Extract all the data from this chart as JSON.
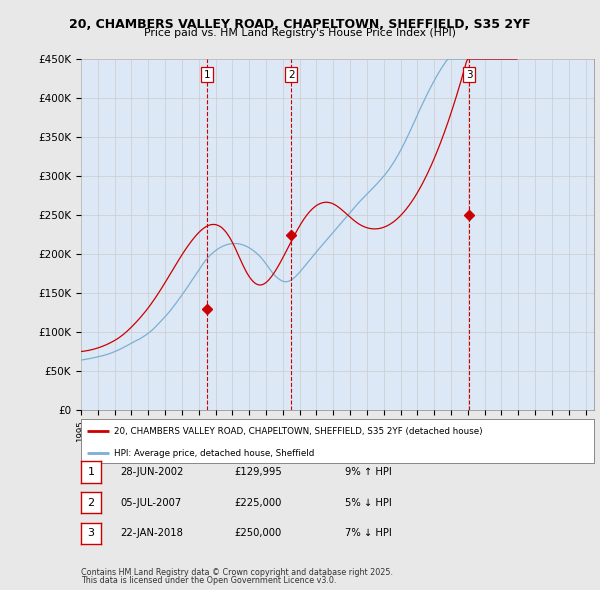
{
  "title": "20, CHAMBERS VALLEY ROAD, CHAPELTOWN, SHEFFIELD, S35 2YF",
  "subtitle": "Price paid vs. HM Land Registry's House Price Index (HPI)",
  "ylim": [
    0,
    450000
  ],
  "yticks": [
    0,
    50000,
    100000,
    150000,
    200000,
    250000,
    300000,
    350000,
    400000,
    450000
  ],
  "ytick_labels": [
    "£0",
    "£50K",
    "£100K",
    "£150K",
    "£200K",
    "£250K",
    "£300K",
    "£350K",
    "£400K",
    "£450K"
  ],
  "xlim_start": 1995.0,
  "xlim_end": 2025.5,
  "background_color": "#e8e8e8",
  "plot_bg_color": "#ffffff",
  "shade_color": "#dce8f5",
  "grid_color": "#cccccc",
  "red_line_color": "#cc0000",
  "blue_line_color": "#7ab0d4",
  "transaction_line_color": "#cc0000",
  "transactions": [
    {
      "year": 2002.49,
      "price": 129995,
      "label": "1",
      "date": "28-JUN-2002",
      "price_str": "£129,995",
      "hpi_str": "9% ↑ HPI"
    },
    {
      "year": 2007.51,
      "price": 225000,
      "label": "2",
      "date": "05-JUL-2007",
      "price_str": "£225,000",
      "hpi_str": "5% ↓ HPI"
    },
    {
      "year": 2018.07,
      "price": 250000,
      "label": "3",
      "date": "22-JAN-2018",
      "price_str": "£250,000",
      "hpi_str": "7% ↓ HPI"
    }
  ],
  "legend_entry1": "20, CHAMBERS VALLEY ROAD, CHAPELTOWN, SHEFFIELD, S35 2YF (detached house)",
  "legend_entry2": "HPI: Average price, detached house, Sheffield",
  "footer1": "Contains HM Land Registry data © Crown copyright and database right 2025.",
  "footer2": "This data is licensed under the Open Government Licence v3.0.",
  "hpi_values_monthly": [
    64000,
    64300,
    64600,
    64900,
    65200,
    65500,
    65800,
    66200,
    66600,
    67000,
    67400,
    67800,
    68200,
    68600,
    69000,
    69400,
    69900,
    70400,
    70900,
    71500,
    72100,
    72700,
    73400,
    74100,
    74800,
    75600,
    76400,
    77200,
    78100,
    79000,
    79900,
    80800,
    81800,
    82800,
    83800,
    84800,
    85800,
    86800,
    87700,
    88600,
    89500,
    90400,
    91300,
    92400,
    93500,
    94700,
    95900,
    97100,
    98400,
    99800,
    101300,
    102900,
    104600,
    106400,
    108200,
    110100,
    112000,
    113900,
    115800,
    117700,
    119600,
    121600,
    123700,
    125900,
    128100,
    130400,
    132700,
    135100,
    137500,
    139900,
    142400,
    144900,
    147400,
    149900,
    152500,
    155100,
    157800,
    160500,
    163200,
    165900,
    168600,
    171300,
    174000,
    176700,
    179400,
    182100,
    184800,
    187300,
    189800,
    192100,
    194300,
    196300,
    198200,
    199900,
    201500,
    203000,
    204400,
    205700,
    206900,
    208000,
    209000,
    209900,
    210700,
    211400,
    212000,
    212500,
    212900,
    213200,
    213400,
    213500,
    213500,
    213400,
    213200,
    212900,
    212500,
    212000,
    211400,
    210700,
    209900,
    209000,
    208000,
    206900,
    205700,
    204400,
    203000,
    201500,
    199900,
    198200,
    196300,
    194300,
    192100,
    189800,
    187300,
    184700,
    182100,
    179600,
    177200,
    175000,
    173000,
    171200,
    169600,
    168200,
    167000,
    166000,
    165200,
    164700,
    164500,
    164600,
    165000,
    165700,
    166700,
    167900,
    169400,
    171000,
    172800,
    174700,
    176700,
    178800,
    181000,
    183200,
    185400,
    187600,
    189800,
    192000,
    194200,
    196400,
    198600,
    200800,
    202900,
    205000,
    207100,
    209200,
    211300,
    213400,
    215500,
    217600,
    219700,
    221800,
    223900,
    226000,
    228100,
    230200,
    232300,
    234400,
    236500,
    238600,
    240700,
    242800,
    244900,
    247000,
    249100,
    251200,
    253300,
    255400,
    257500,
    259600,
    261700,
    263700,
    265700,
    267600,
    269500,
    271400,
    273200,
    275000,
    276800,
    278600,
    280400,
    282200,
    284000,
    285900,
    287800,
    289700,
    291700,
    293700,
    295700,
    297700,
    299800,
    302000,
    304300,
    306700,
    309200,
    311800,
    314500,
    317300,
    320200,
    323200,
    326300,
    329500,
    332800,
    336200,
    339700,
    343300,
    347000,
    350700,
    354500,
    358400,
    362400,
    366400,
    370400,
    374400,
    378400,
    382300,
    386200,
    390000,
    393800,
    397600,
    401300,
    405000,
    408600,
    412100,
    415600,
    419000,
    422300,
    425500,
    428700,
    431800,
    434800,
    437700,
    440500,
    443200,
    445800,
    448400,
    450900,
    453400,
    455800,
    458100,
    460400,
    462600,
    464700,
    466800,
    468800,
    470700,
    472600,
    474400,
    476100,
    477800,
    479400,
    480900,
    482300,
    483700,
    485000,
    486200,
    487300,
    488400,
    489300,
    490200,
    491000,
    491700,
    492300,
    492800,
    493200,
    493400,
    493600,
    493600,
    493500,
    493200,
    492800,
    492300,
    491600,
    490900,
    490000,
    489100,
    488100,
    487100,
    486000,
    484900,
    483700,
    482500,
    481300,
    480000,
    478700,
    477400
  ],
  "red_values_monthly": [
    75000,
    75200,
    75400,
    75700,
    76000,
    76300,
    76700,
    77100,
    77500,
    78000,
    78500,
    79000,
    79600,
    80200,
    80800,
    81500,
    82200,
    82900,
    83700,
    84500,
    85400,
    86300,
    87200,
    88200,
    89200,
    90300,
    91400,
    92600,
    93900,
    95200,
    96600,
    98100,
    99600,
    101200,
    102900,
    104600,
    106400,
    108200,
    110100,
    112000,
    113900,
    115900,
    117900,
    120000,
    122100,
    124300,
    126500,
    128800,
    131100,
    133500,
    136000,
    138500,
    141100,
    143700,
    146400,
    149100,
    151900,
    154700,
    157600,
    160500,
    163400,
    166400,
    169400,
    172400,
    175400,
    178400,
    181400,
    184400,
    187400,
    190300,
    193200,
    196100,
    198900,
    201700,
    204400,
    207100,
    209700,
    212200,
    214600,
    217000,
    219300,
    221500,
    223600,
    225600,
    227500,
    229300,
    230900,
    232400,
    233700,
    234900,
    235900,
    236700,
    237300,
    237700,
    237900,
    237900,
    237700,
    237200,
    236500,
    235600,
    234400,
    232900,
    231100,
    229100,
    226800,
    224200,
    221400,
    218300,
    215000,
    211500,
    207700,
    203800,
    199800,
    195700,
    191700,
    187800,
    184000,
    180400,
    177000,
    173900,
    171100,
    168600,
    166400,
    164500,
    162900,
    161700,
    160900,
    160400,
    160300,
    160600,
    161200,
    162200,
    163500,
    165100,
    166900,
    169000,
    171300,
    173800,
    176500,
    179300,
    182300,
    185400,
    188600,
    191900,
    195300,
    198700,
    202200,
    205700,
    209200,
    212700,
    216200,
    219700,
    223100,
    226500,
    229800,
    233000,
    236100,
    239100,
    242000,
    244700,
    247300,
    249700,
    252000,
    254100,
    256000,
    257800,
    259400,
    260900,
    262200,
    263300,
    264200,
    265000,
    265600,
    266000,
    266300,
    266400,
    266300,
    266000,
    265600,
    265000,
    264200,
    263300,
    262200,
    261000,
    259700,
    258300,
    256800,
    255300,
    253700,
    252100,
    250500,
    248900,
    247300,
    245700,
    244200,
    242700,
    241300,
    240000,
    238800,
    237700,
    236700,
    235800,
    235000,
    234300,
    233700,
    233200,
    232800,
    232500,
    232300,
    232200,
    232200,
    232300,
    232500,
    232800,
    233200,
    233700,
    234300,
    235000,
    235800,
    236700,
    237700,
    238800,
    240000,
    241300,
    242700,
    244200,
    245800,
    247500,
    249300,
    251200,
    253200,
    255300,
    257500,
    259800,
    262200,
    264700,
    267300,
    270000,
    272800,
    275700,
    278700,
    281800,
    285000,
    288300,
    291700,
    295200,
    298800,
    302500,
    306300,
    310200,
    314200,
    318300,
    322500,
    326800,
    331200,
    335700,
    340300,
    345000,
    349800,
    354700,
    359700,
    364800,
    370000,
    375300,
    380700,
    386200,
    391800,
    397500,
    403300,
    409200,
    415200,
    421300,
    427500,
    433800,
    440200,
    446700,
    453300,
    460000,
    466800,
    473700,
    480700,
    487800,
    495000,
    502300,
    509700,
    517200,
    524800,
    532500,
    540300,
    548200,
    556200,
    564300,
    572500,
    580800,
    589200,
    597700,
    606300,
    615000,
    623800,
    632700,
    641700,
    650800,
    660000,
    669300,
    678700,
    688200,
    697800,
    707500,
    717300,
    727200,
    737200,
    747300
  ]
}
